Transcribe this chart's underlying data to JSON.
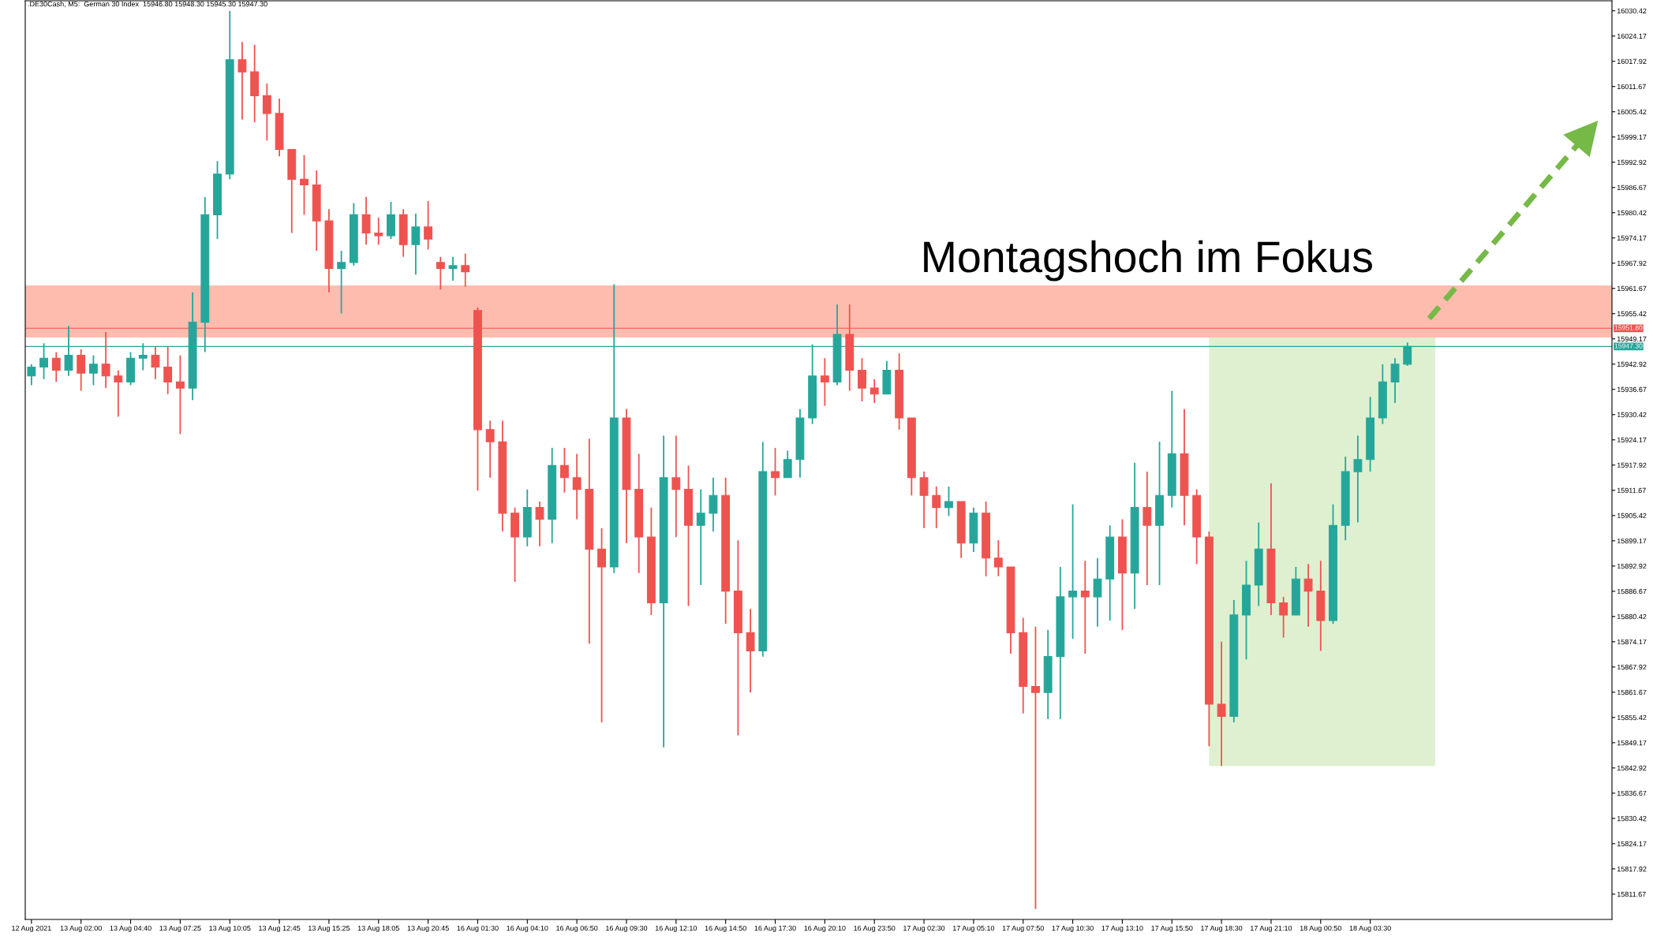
{
  "chart_data": {
    "type": "candlestick",
    "title": ".DE30Cash, M5:  German 30 Index  15946.80 15948.30 15945.30 15947.30",
    "categories": [
      "12 Aug 2021",
      null,
      null,
      null,
      "13 Aug 02:00",
      null,
      null,
      null,
      "13 Aug 04:40",
      null,
      null,
      null,
      "13 Aug 07:25",
      null,
      null,
      null,
      "13 Aug 10:05",
      null,
      null,
      null,
      "13 Aug 12:45",
      null,
      null,
      null,
      "13 Aug 15:25",
      null,
      null,
      null,
      "13 Aug 18:05",
      null,
      null,
      null,
      "13 Aug 20:45",
      null,
      null,
      null,
      "16 Aug 01:30",
      null,
      null,
      null,
      "16 Aug 04:10",
      null,
      null,
      null,
      "16 Aug 06:50",
      null,
      null,
      null,
      "16 Aug 09:30",
      null,
      null,
      null,
      "16 Aug 12:10",
      null,
      null,
      null,
      "16 Aug 14:50",
      null,
      null,
      null,
      "16 Aug 17:30",
      null,
      null,
      null,
      "16 Aug 20:10",
      null,
      null,
      null,
      "16 Aug 23:50",
      null,
      null,
      null,
      "17 Aug 02:30",
      null,
      null,
      null,
      "17 Aug 05:10",
      null,
      null,
      null,
      "17 Aug 07:50",
      null,
      null,
      null,
      "17 Aug 10:30",
      null,
      null,
      null,
      "17 Aug 13:10",
      null,
      null,
      null,
      "17 Aug 15:50",
      null,
      null,
      null,
      "17 Aug 18:30",
      null,
      null,
      null,
      "17 Aug 21:10",
      null,
      null,
      null,
      "18 Aug 00:50",
      null,
      null,
      null,
      "18 Aug 03:30",
      null,
      null,
      null,
      null,
      null,
      null,
      null,
      null,
      null,
      null,
      null,
      null,
      null,
      null,
      null,
      null,
      null,
      null,
      null
    ],
    "ohlc": [
      [
        15940.0,
        15942.9,
        15937.7,
        15942.2
      ],
      [
        15942.2,
        15948.1,
        15939.2,
        15944.4
      ],
      [
        15944.4,
        15945.9,
        15938.5,
        15941.4
      ],
      [
        15941.4,
        15952.4,
        15940.0,
        15945.1
      ],
      [
        15945.1,
        15946.6,
        15936.3,
        15940.7
      ],
      [
        15940.7,
        15945.1,
        15937.7,
        15942.9
      ],
      [
        15942.9,
        15950.9,
        15937.0,
        15940.0
      ],
      [
        15940.0,
        15941.4,
        15929.9,
        15938.5
      ],
      [
        15938.5,
        15945.9,
        15937.7,
        15944.4
      ],
      [
        15944.4,
        15948.1,
        15941.4,
        15945.1
      ],
      [
        15945.1,
        15947.3,
        15939.2,
        15942.2
      ],
      [
        15942.2,
        15947.3,
        15935.5,
        15938.5
      ],
      [
        15938.5,
        15945.1,
        15925.6,
        15937.0
      ],
      [
        15937.0,
        15960.7,
        15934.0,
        15953.3
      ],
      [
        15953.3,
        15984.3,
        15945.9,
        15979.9
      ],
      [
        15979.9,
        15993.2,
        15973.9,
        15990.0
      ],
      [
        15990.0,
        16030.4,
        15988.7,
        16018.3
      ],
      [
        16018.3,
        16022.7,
        16003.5,
        16015.3
      ],
      [
        16015.3,
        16022.0,
        16002.8,
        16009.4
      ],
      [
        16009.4,
        16012.4,
        15998.3,
        16005.0
      ],
      [
        16005.0,
        16008.7,
        15994.4,
        15996.1
      ],
      [
        15996.1,
        15996.1,
        15975.4,
        15988.7
      ],
      [
        15988.7,
        15994.7,
        15979.9,
        15987.3
      ],
      [
        15987.3,
        15990.9,
        15971.0,
        15978.4
      ],
      [
        15978.4,
        15981.3,
        15960.7,
        15966.6
      ],
      [
        15966.6,
        15971.0,
        15955.5,
        15968.1
      ],
      [
        15968.1,
        15982.8,
        15967.3,
        15979.9
      ],
      [
        15979.9,
        15984.3,
        15972.5,
        15975.4
      ],
      [
        15975.4,
        15979.2,
        15972.5,
        15974.7
      ],
      [
        15974.7,
        15983.1,
        15973.9,
        15979.9
      ],
      [
        15979.9,
        15981.3,
        15969.5,
        15972.5
      ],
      [
        15972.5,
        15980.2,
        15965.1,
        15976.9
      ],
      [
        15976.9,
        15983.3,
        15971.3,
        15973.9
      ],
      [
        15968.1,
        15969.5,
        15961.4,
        15966.6
      ],
      [
        15966.6,
        15969.5,
        15963.6,
        15967.3
      ],
      [
        15967.3,
        15970.3,
        15962.1,
        15965.8
      ],
      [
        15956.2,
        15957.0,
        15911.6,
        15926.7
      ],
      [
        15926.7,
        15928.9,
        15914.8,
        15923.7
      ],
      [
        15923.7,
        15928.9,
        15901.5,
        15906.0
      ],
      [
        15906.0,
        15907.4,
        15889.0,
        15900.1
      ],
      [
        15900.1,
        15911.9,
        15897.8,
        15907.4
      ],
      [
        15907.4,
        15908.9,
        15897.8,
        15904.5
      ],
      [
        15904.5,
        15922.2,
        15898.6,
        15917.8
      ],
      [
        15917.8,
        15922.2,
        15911.1,
        15914.8
      ],
      [
        15914.8,
        15920.7,
        15904.5,
        15911.9
      ],
      [
        15911.9,
        15924.4,
        15873.7,
        15897.1
      ],
      [
        15897.1,
        15902.3,
        15854.2,
        15892.7
      ],
      [
        15892.7,
        15962.7,
        15891.2,
        15929.6
      ],
      [
        15929.6,
        15931.8,
        15898.6,
        15911.9
      ],
      [
        15911.9,
        15920.7,
        15891.2,
        15900.1
      ],
      [
        15900.1,
        15907.4,
        15880.8,
        15883.8
      ],
      [
        15883.8,
        15925.2,
        15848.0,
        15914.8
      ],
      [
        15914.8,
        15925.2,
        15900.1,
        15911.9
      ],
      [
        15911.9,
        15917.8,
        15883.0,
        15903.0
      ],
      [
        15903.0,
        15911.9,
        15888.2,
        15906.0
      ],
      [
        15906.0,
        15914.8,
        15901.5,
        15910.4
      ],
      [
        15910.4,
        15914.8,
        15878.6,
        15886.7
      ],
      [
        15886.7,
        15899.3,
        15851.0,
        15876.4
      ],
      [
        15876.4,
        15882.3,
        15861.6,
        15871.9
      ],
      [
        15871.9,
        15923.7,
        15870.5,
        15916.3
      ],
      [
        15916.3,
        15922.2,
        15910.4,
        15914.8
      ],
      [
        15914.8,
        15921.5,
        15914.8,
        15919.3
      ],
      [
        15919.3,
        15931.8,
        15914.8,
        15929.6
      ],
      [
        15929.6,
        15947.8,
        15928.1,
        15940.0
      ],
      [
        15940.0,
        15944.4,
        15932.6,
        15938.5
      ],
      [
        15938.5,
        15957.7,
        15937.7,
        15950.3
      ],
      [
        15950.3,
        15957.7,
        15936.3,
        15941.4
      ],
      [
        15941.4,
        15944.4,
        15933.7,
        15937.0
      ],
      [
        15937.0,
        15939.2,
        15933.3,
        15935.5
      ],
      [
        15935.5,
        15943.7,
        15935.5,
        15941.4
      ],
      [
        15941.4,
        15945.6,
        15926.7,
        15929.6
      ],
      [
        15929.6,
        15929.6,
        15910.4,
        15914.8
      ],
      [
        15914.8,
        15916.3,
        15902.3,
        15910.4
      ],
      [
        15910.4,
        15912.6,
        15902.3,
        15907.4
      ],
      [
        15907.4,
        15912.6,
        15905.3,
        15908.9
      ],
      [
        15908.9,
        15908.9,
        15894.9,
        15898.6
      ],
      [
        15898.6,
        15907.4,
        15896.4,
        15906.0
      ],
      [
        15906.0,
        15908.9,
        15890.4,
        15894.9
      ],
      [
        15894.9,
        15899.3,
        15890.4,
        15892.7
      ],
      [
        15892.7,
        15892.7,
        15871.2,
        15876.4
      ],
      [
        15876.4,
        15880.1,
        15856.4,
        15863.1
      ],
      [
        15863.1,
        15877.9,
        15808.0,
        15861.6
      ],
      [
        15861.6,
        15877.1,
        15855.0,
        15870.5
      ],
      [
        15870.5,
        15892.7,
        15855.0,
        15885.3
      ],
      [
        15885.3,
        15908.2,
        15874.9,
        15886.7
      ],
      [
        15886.7,
        15894.2,
        15871.2,
        15885.3
      ],
      [
        15885.3,
        15894.9,
        15877.9,
        15889.7
      ],
      [
        15889.7,
        15903.0,
        15879.4,
        15900.1
      ],
      [
        15900.1,
        15904.5,
        15877.1,
        15891.2
      ],
      [
        15891.2,
        15918.5,
        15882.3,
        15907.4
      ],
      [
        15907.4,
        15916.3,
        15888.2,
        15903.0
      ],
      [
        15903.0,
        15923.7,
        15888.2,
        15910.4
      ],
      [
        15910.4,
        15936.3,
        15907.4,
        15920.7
      ],
      [
        15920.7,
        15931.8,
        15903.0,
        15910.4
      ],
      [
        15910.4,
        15911.9,
        15893.4,
        15900.1
      ],
      [
        15900.1,
        15901.5,
        15848.3,
        15858.7
      ],
      [
        15858.7,
        15874.2,
        15843.4,
        15855.7
      ],
      [
        15855.7,
        15884.5,
        15854.2,
        15880.8
      ],
      [
        15880.8,
        15894.2,
        15869.8,
        15888.2
      ],
      [
        15888.2,
        15903.7,
        15883.0,
        15897.1
      ],
      [
        15897.1,
        15913.4,
        15880.8,
        15883.8
      ],
      [
        15883.8,
        15885.3,
        15875.2,
        15880.8
      ],
      [
        15880.8,
        15892.7,
        15880.8,
        15889.7
      ],
      [
        15889.7,
        15893.4,
        15877.9,
        15886.7
      ],
      [
        15886.7,
        15894.2,
        15871.9,
        15879.4
      ],
      [
        15879.4,
        15908.2,
        15878.6,
        15903.0
      ],
      [
        15903.0,
        15920.0,
        15899.3,
        15916.3
      ],
      [
        15916.3,
        15925.2,
        15903.7,
        15919.3
      ],
      [
        15919.3,
        15934.8,
        15916.3,
        15929.6
      ],
      [
        15929.6,
        15942.9,
        15928.1,
        15938.5
      ],
      [
        15938.5,
        15944.4,
        15933.3,
        15942.9
      ],
      [
        15942.9,
        15948.3,
        15942.5,
        15947.3
      ],
      null,
      null,
      null,
      null,
      null,
      null,
      null,
      null,
      null,
      null,
      null,
      null,
      null,
      null,
      null,
      null
    ],
    "colors": [
      "#26a69a",
      "#26a69a",
      "#ef5350",
      "#26a69a",
      "#ef5350",
      "#26a69a",
      "#ef5350",
      "#ef5350",
      "#26a69a",
      "#26a69a",
      "#ef5350",
      "#ef5350",
      "#ef5350",
      "#26a69a",
      "#26a69a",
      "#26a69a",
      "#26a69a",
      "#ef5350",
      "#ef5350",
      "#ef5350",
      "#ef5350",
      "#ef5350",
      "#ef5350",
      "#ef5350",
      "#ef5350",
      "#26a69a",
      "#26a69a",
      "#ef5350",
      "#ef5350",
      "#26a69a",
      "#ef5350",
      "#26a69a",
      "#ef5350",
      "#ef5350",
      "#26a69a",
      "#ef5350",
      "#ef5350",
      "#ef5350",
      "#ef5350",
      "#ef5350",
      "#26a69a",
      "#ef5350",
      "#26a69a",
      "#ef5350",
      "#ef5350",
      "#ef5350",
      "#ef5350",
      "#26a69a",
      "#ef5350",
      "#ef5350",
      "#ef5350",
      "#26a69a",
      "#ef5350",
      "#ef5350",
      "#26a69a",
      "#26a69a",
      "#ef5350",
      "#ef5350",
      "#ef5350",
      "#26a69a",
      "#ef5350",
      "#26a69a",
      "#26a69a",
      "#26a69a",
      "#ef5350",
      "#26a69a",
      "#ef5350",
      "#ef5350",
      "#ef5350",
      "#26a69a",
      "#ef5350",
      "#ef5350",
      "#ef5350",
      "#ef5350",
      "#26a69a",
      "#ef5350",
      "#26a69a",
      "#ef5350",
      "#ef5350",
      "#ef5350",
      "#ef5350",
      "#ef5350",
      "#26a69a",
      "#26a69a",
      "#26a69a",
      "#ef5350",
      "#26a69a",
      "#26a69a",
      "#ef5350",
      "#26a69a",
      "#ef5350",
      "#26a69a",
      "#26a69a",
      "#ef5350",
      "#ef5350",
      "#ef5350",
      "#ef5350",
      "#26a69a",
      "#26a69a",
      "#26a69a",
      "#ef5350",
      "#ef5350",
      "#26a69a",
      "#ef5350",
      "#ef5350",
      "#26a69a",
      "#26a69a",
      "#26a69a",
      "#26a69a",
      "#26a69a",
      "#26a69a",
      "#26a69a",
      null,
      null,
      null,
      null,
      null,
      null,
      null,
      null,
      null,
      null,
      null,
      null,
      null,
      null,
      null,
      null
    ],
    "ylim": [
      15805.4,
      16032.9
    ],
    "yticks": [
      15811.67,
      15817.92,
      15824.17,
      15830.42,
      15836.67,
      15842.92,
      15849.17,
      15855.42,
      15861.67,
      15867.92,
      15874.17,
      15880.42,
      15886.67,
      15892.92,
      15899.17,
      15905.42,
      15911.67,
      15917.92,
      15924.17,
      15930.42,
      15936.67,
      15942.92,
      15949.17,
      15955.42,
      15961.67,
      15967.92,
      15974.17,
      15980.42,
      15986.67,
      15992.92,
      15999.17,
      16005.42,
      16011.67,
      16017.92,
      16024.17,
      16030.42
    ],
    "ref_lines": [
      {
        "axis": "y",
        "value": 15951.8,
        "label": "15951.80",
        "color": "#ef5350"
      },
      {
        "axis": "y",
        "value": 15947.3,
        "label": "15947.30",
        "color": "#26a69a"
      }
    ],
    "bands": [
      {
        "axis": "y",
        "from": 15949.5,
        "to": 15962.4,
        "color": "#fdbcae"
      }
    ],
    "annotations": [
      "Montagshoch im Fokus"
    ]
  }
}
